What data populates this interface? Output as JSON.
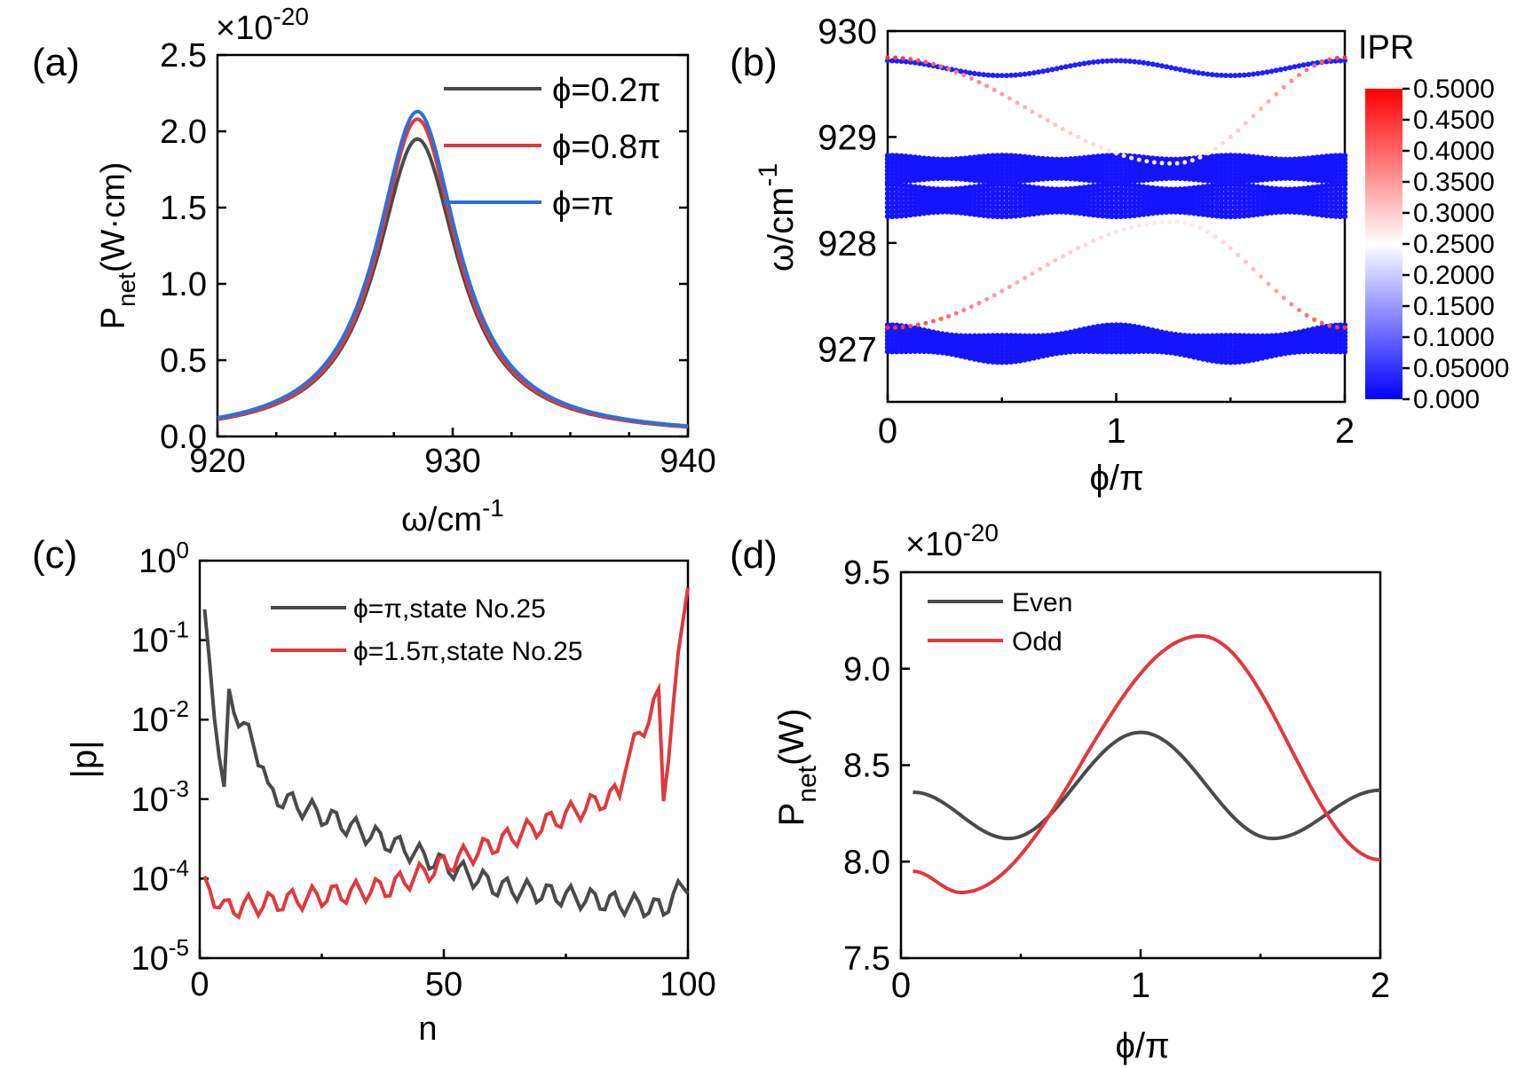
{
  "figure": {
    "panel_labels": [
      "(a)",
      "(b)",
      "(c)",
      "(d)"
    ]
  },
  "chart_data": [
    {
      "id": "a",
      "type": "line",
      "xlabel": "ω/cm",
      "xlabel_sup": "-1",
      "ylabel": "P",
      "ylabel_sub": "net",
      "ylabel_rest": "(W·cm)",
      "multiplier": "×10",
      "multiplier_exp": "-20",
      "xlim": [
        920,
        940
      ],
      "ylim": [
        0,
        2.5
      ],
      "xticks": [
        "920",
        "930",
        "940"
      ],
      "yticks": [
        "0.0",
        "0.5",
        "1.0",
        "1.5",
        "2.0",
        "2.5"
      ],
      "legend": [
        "ϕ=0.2π",
        "ϕ=0.8π",
        "ϕ=π"
      ],
      "series": [
        {
          "name": "ϕ=0.2π",
          "color": "#4a4a4a",
          "center": 928.5,
          "peak": 1.95,
          "gamma": 2.1
        },
        {
          "name": "ϕ=0.8π",
          "color": "#e0393e",
          "center": 928.5,
          "peak": 2.08,
          "gamma": 2.05
        },
        {
          "name": "ϕ=π",
          "color": "#2f6fd6",
          "center": 928.5,
          "peak": 2.13,
          "gamma": 2.1
        }
      ]
    },
    {
      "id": "b",
      "type": "scatter",
      "xlabel": "ϕ/π",
      "ylabel": "ω/cm",
      "ylabel_sup": "-1",
      "xlim": [
        0,
        2
      ],
      "ylim": [
        926.5,
        930
      ],
      "xticks": [
        "0",
        "1",
        "2"
      ],
      "yticks": [
        "927",
        "928",
        "929",
        "930"
      ],
      "colorbar_title": "IPR",
      "colorbar_ticks": [
        "0.000",
        "0.05000",
        "0.1000",
        "0.1500",
        "0.2000",
        "0.2500",
        "0.3000",
        "0.3500",
        "0.4000",
        "0.4500",
        "0.5000"
      ],
      "colorbar_colors": [
        "#0000ff",
        "#ffffff",
        "#ff0000"
      ],
      "bands": [
        {
          "center": 929.65,
          "amplitude": 0.07,
          "periods": 4,
          "ipr": 0.03
        },
        {
          "center": 928.7,
          "width": 0.25,
          "ipr": 0.02
        },
        {
          "center": 928.4,
          "width": 0.3,
          "ipr": 0.02
        },
        {
          "center": 927.05,
          "width": 0.25,
          "amplitude": 0.05,
          "periods": 4,
          "ipr": 0.02
        }
      ],
      "edge_states": [
        {
          "from": 929.75,
          "to": 928.75,
          "ipr": 0.45
        },
        {
          "from": 927.2,
          "to": 928.2,
          "ipr": 0.45
        }
      ]
    },
    {
      "id": "c",
      "type": "line",
      "xlabel": "n",
      "ylabel": "|p|",
      "yscale": "log",
      "xlim": [
        0,
        100
      ],
      "ylim_exp": [
        -5,
        0
      ],
      "xticks": [
        "0",
        "50",
        "100"
      ],
      "yticks_base": "10",
      "yticks_exp": [
        "0",
        "-1",
        "-2",
        "-3",
        "-4",
        "-5"
      ],
      "legend": [
        "ϕ=π,state No.25",
        "ϕ=1.5π,state No.25"
      ],
      "series": [
        {
          "name": "ϕ=π,state No.25",
          "color": "#4a4a4a",
          "direction": "left"
        },
        {
          "name": "ϕ=1.5π,state No.25",
          "color": "#e0393e",
          "direction": "right"
        }
      ]
    },
    {
      "id": "d",
      "type": "line",
      "xlabel": "ϕ/π",
      "ylabel": "P",
      "ylabel_sub": "net",
      "ylabel_rest": "(W)",
      "multiplier": "×10",
      "multiplier_exp": "-20",
      "xlim": [
        0,
        2
      ],
      "ylim": [
        7.5,
        9.5
      ],
      "xticks": [
        "0",
        "1",
        "2"
      ],
      "yticks": [
        "7.5",
        "8.0",
        "8.5",
        "9.0",
        "9.5"
      ],
      "legend": [
        "Even",
        "Odd"
      ],
      "series": [
        {
          "name": "Even",
          "color": "#4a4a4a",
          "x": [
            0.05,
            0.45,
            1.0,
            1.55,
            2.0
          ],
          "y": [
            8.36,
            8.12,
            8.67,
            8.12,
            8.37
          ]
        },
        {
          "name": "Odd",
          "color": "#e0393e",
          "x": [
            0.05,
            0.25,
            1.25,
            2.0
          ],
          "y": [
            7.95,
            7.84,
            9.17,
            8.01
          ]
        }
      ]
    }
  ]
}
